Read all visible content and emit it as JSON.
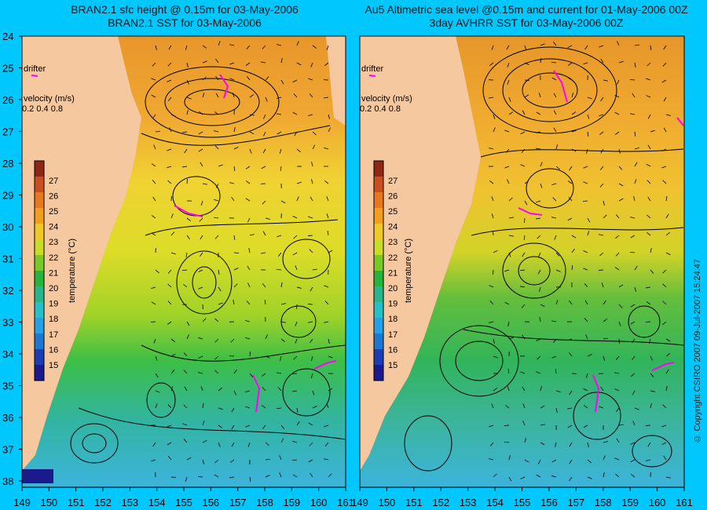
{
  "panels": [
    {
      "id": "left",
      "title_line1": "BRAN2.1 sfc height @ 0.15m for 03-May-2006",
      "title_line2": "BRAN2.1 SST for 03-May-2006"
    },
    {
      "id": "right",
      "title_line1": "Au5 Altimetric sea level  @0.15m and current for 01-May-2006 00Z",
      "title_line2": "3day AVHRR SST for 03-May-2006 00Z"
    }
  ],
  "map_legend": {
    "drifter_label": "drifter",
    "velocity_label": "velocity (m/s)",
    "velocity_scale": "0.2 0.4 0.8"
  },
  "colorbar": {
    "label": "temperature (°C)",
    "ticks": [
      "15",
      "16",
      "17",
      "18",
      "19",
      "20",
      "21",
      "22",
      "23",
      "24",
      "25",
      "26",
      "27"
    ],
    "colors": [
      "#1a1a8c",
      "#1e3cb4",
      "#1e78d2",
      "#28a0e6",
      "#28c0c8",
      "#2ab48c",
      "#28b43c",
      "#78c828",
      "#c8dc28",
      "#f0c828",
      "#f0a01e",
      "#e6781e",
      "#c8501e",
      "#8c2814"
    ]
  },
  "axes": {
    "lat_ticks": [
      "24",
      "25",
      "26",
      "27",
      "28",
      "29",
      "30",
      "31",
      "32",
      "33",
      "34",
      "35",
      "36",
      "37",
      "38"
    ],
    "lon_ticks": [
      "149",
      "150",
      "151",
      "152",
      "153",
      "154",
      "155",
      "156",
      "157",
      "158",
      "159",
      "160",
      "161"
    ]
  },
  "copyright": "© Copyright CSIRO 2007   09-Jul-2007 15:24:47",
  "colors": {
    "background": "#00c8ff",
    "land": "#f5c8a0",
    "drifter": "#ff00ff"
  }
}
